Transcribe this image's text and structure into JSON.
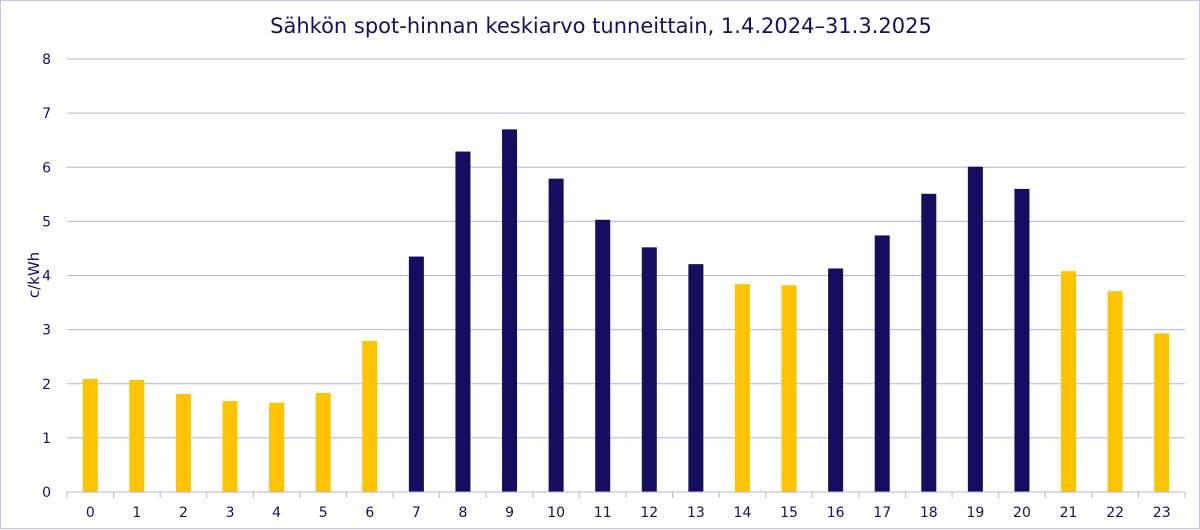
{
  "chart_data": {
    "type": "bar",
    "title": "Sähkön spot-hinnan keskiarvo tunneittain, 1.4.2024–31.3.2025",
    "xlabel": "",
    "ylabel": "c/kWh",
    "ylim": [
      0,
      8
    ],
    "yticks": [
      "0",
      "1",
      "2",
      "3",
      "4",
      "5",
      "6",
      "7",
      "8"
    ],
    "grid": true,
    "legend": "none",
    "categories": [
      "0",
      "1",
      "2",
      "3",
      "4",
      "5",
      "6",
      "7",
      "8",
      "9",
      "10",
      "11",
      "12",
      "13",
      "14",
      "15",
      "16",
      "17",
      "18",
      "19",
      "20",
      "21",
      "22",
      "23"
    ],
    "values": [
      2.09,
      2.07,
      1.81,
      1.68,
      1.65,
      1.83,
      2.79,
      4.35,
      6.29,
      6.7,
      5.79,
      5.03,
      4.52,
      4.21,
      3.84,
      3.82,
      4.13,
      4.74,
      5.51,
      6.01,
      5.6,
      4.08,
      3.71,
      2.93
    ],
    "bar_group": [
      "yellow",
      "yellow",
      "yellow",
      "yellow",
      "yellow",
      "yellow",
      "yellow",
      "navy",
      "navy",
      "navy",
      "navy",
      "navy",
      "navy",
      "navy",
      "yellow",
      "yellow",
      "navy",
      "navy",
      "navy",
      "navy",
      "navy",
      "yellow",
      "yellow",
      "yellow"
    ],
    "colors": {
      "yellow": "#ffc400",
      "navy": "#150e60",
      "text": "#15105e",
      "grid": "#b7b0e0",
      "border": "#c9c6e6"
    }
  }
}
